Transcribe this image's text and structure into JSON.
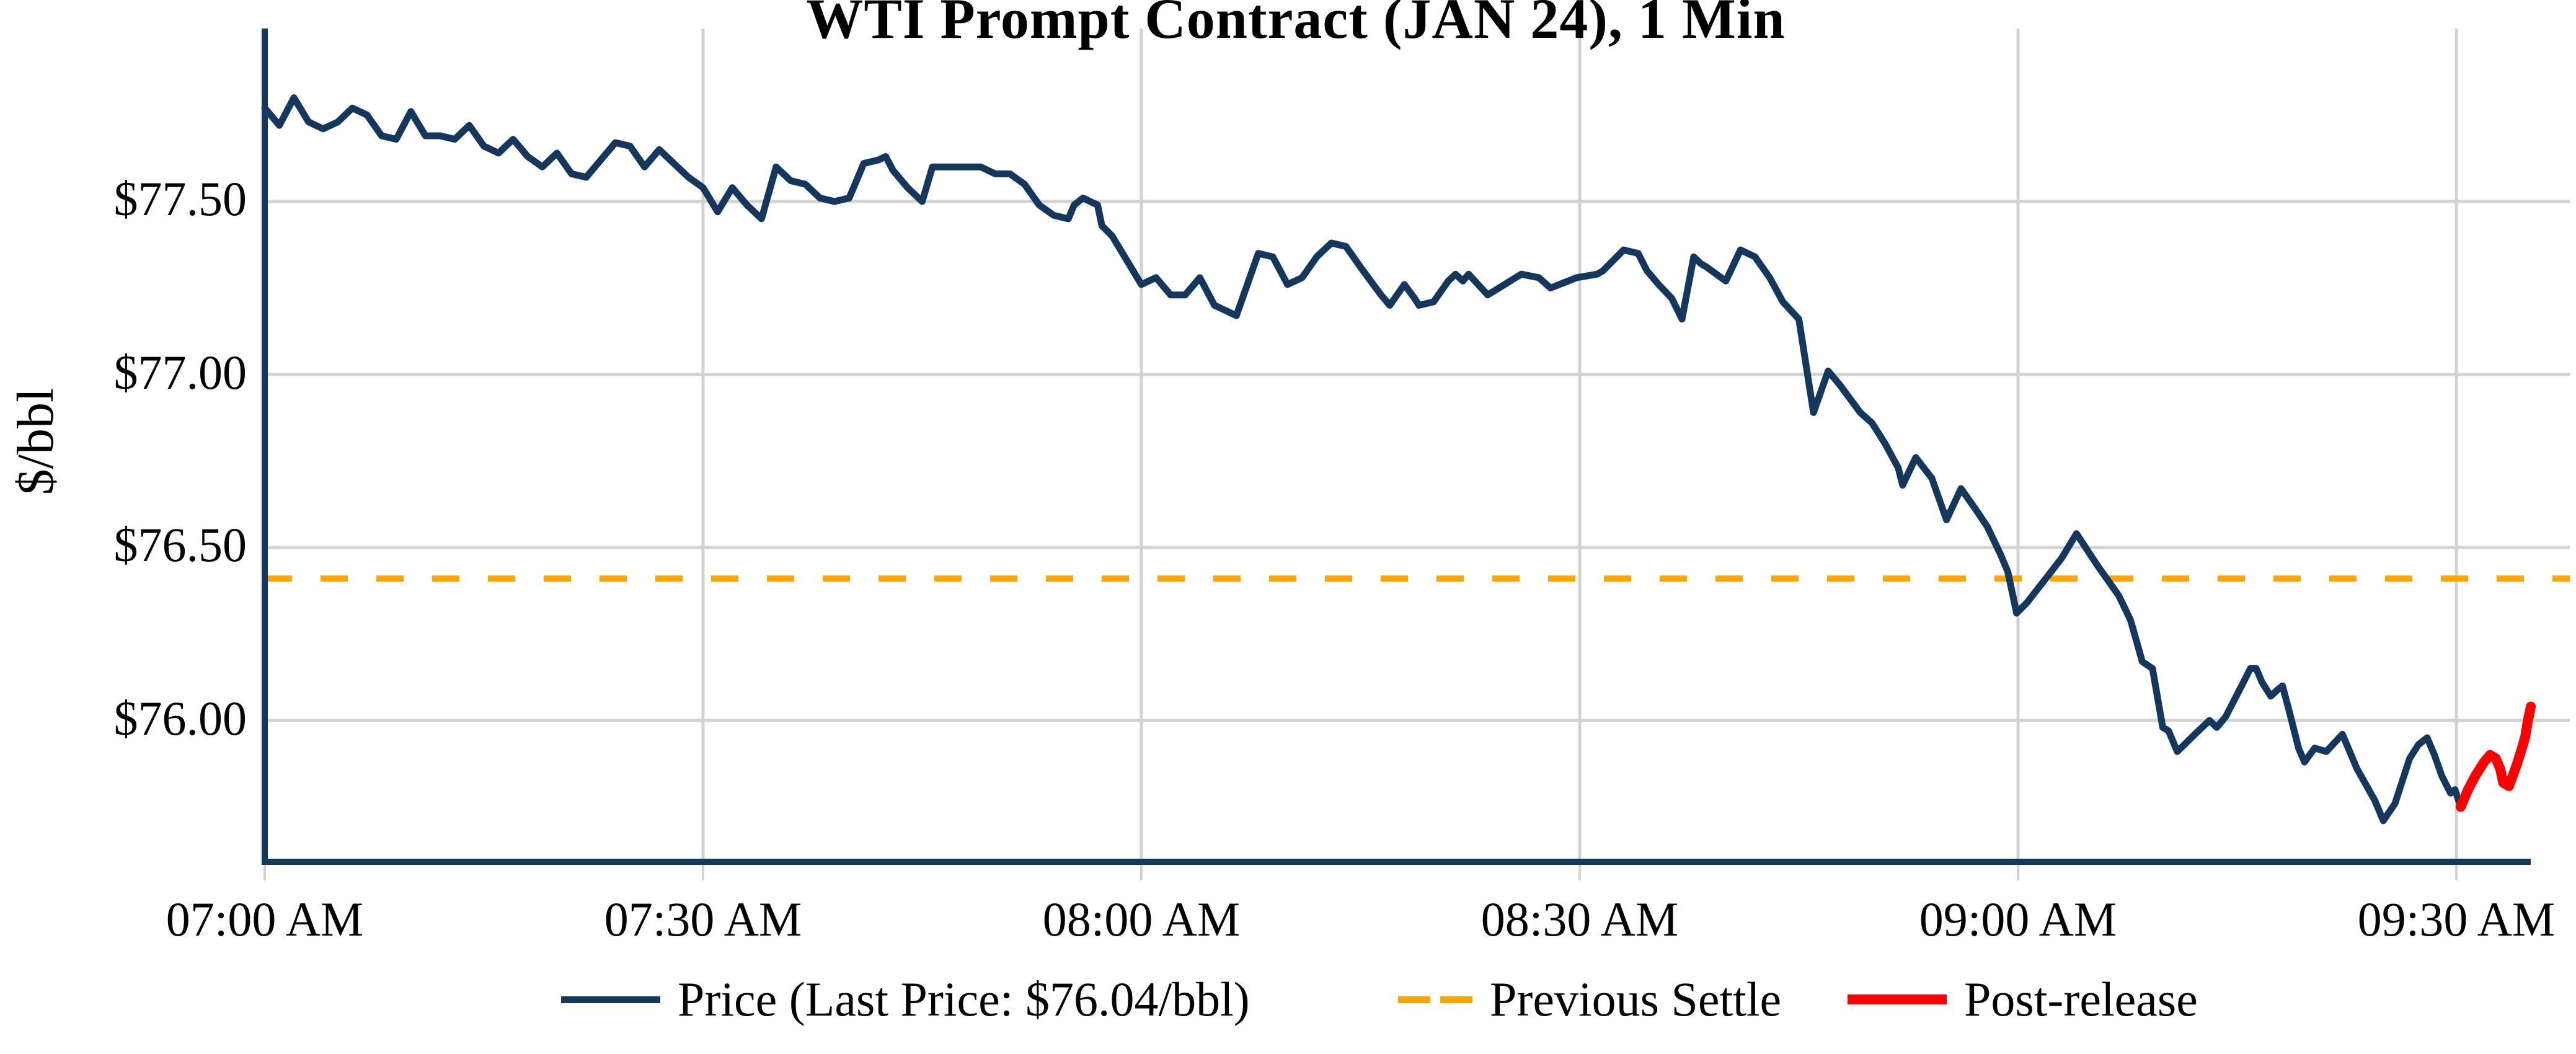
{
  "title": "WTI Prompt Contract (JAN 24), 1 Min",
  "y_axis": {
    "label": "$/bbl",
    "ticks": [
      "$77.50",
      "$77.00",
      "$76.50",
      "$76.00"
    ]
  },
  "x_axis": {
    "ticks": [
      "07:00 AM",
      "07:30 AM",
      "08:00 AM",
      "08:30 AM",
      "09:00 AM",
      "09:30 AM"
    ]
  },
  "legend": {
    "items": [
      {
        "label": "Price (Last Price: $76.04/bbl)",
        "color": "#14375e",
        "style": "solid"
      },
      {
        "label": "Previous Settle",
        "color": "#ffa500",
        "style": "dashed"
      },
      {
        "label": "Post-release",
        "color": "#ff0000",
        "style": "thick"
      }
    ]
  },
  "colors": {
    "price_line": "#14375e",
    "settle_line": "#ffa500",
    "post_release_line": "#ff0000",
    "grid": "#d2d2d2",
    "axis_spine": "#14375e"
  },
  "chart_data": {
    "type": "line",
    "title": "WTI Prompt Contract (JAN 24), 1 Min",
    "xlabel": "",
    "ylabel": "$/bbl",
    "x_unit": "minutes after 07:00 AM",
    "x_tick_minutes": [
      0,
      30,
      60,
      90,
      120,
      150
    ],
    "x_tick_labels": [
      "07:00 AM",
      "07:30 AM",
      "08:00 AM",
      "08:30 AM",
      "09:00 AM",
      "09:30 AM"
    ],
    "ytick_values": [
      77.5,
      77.0,
      76.5,
      76.0
    ],
    "ylim": [
      75.55,
      78.0
    ],
    "xlim_minutes": [
      0,
      155.1
    ],
    "grid": true,
    "legend_position": "bottom",
    "previous_settle": 76.41,
    "last_price": 76.04,
    "series": [
      {
        "name": "Price",
        "type": "line",
        "color": "#14375e",
        "width": 11,
        "points": [
          [
            0,
            77.77
          ],
          [
            1,
            77.72
          ],
          [
            2,
            77.8
          ],
          [
            3,
            77.73
          ],
          [
            4,
            77.71
          ],
          [
            5,
            77.73
          ],
          [
            6,
            77.77
          ],
          [
            7,
            77.75
          ],
          [
            8,
            77.69
          ],
          [
            9,
            77.68
          ],
          [
            10,
            77.76
          ],
          [
            11,
            77.69
          ],
          [
            12,
            77.69
          ],
          [
            13,
            77.68
          ],
          [
            14,
            77.72
          ],
          [
            15,
            77.66
          ],
          [
            16,
            77.64
          ],
          [
            17,
            77.68
          ],
          [
            18,
            77.63
          ],
          [
            19,
            77.6
          ],
          [
            20,
            77.64
          ],
          [
            21,
            77.58
          ],
          [
            22,
            77.57
          ],
          [
            23,
            77.62
          ],
          [
            24,
            77.67
          ],
          [
            25,
            77.66
          ],
          [
            26,
            77.6
          ],
          [
            27,
            77.65
          ],
          [
            28,
            77.61
          ],
          [
            29,
            77.57
          ],
          [
            30,
            77.54
          ],
          [
            31,
            77.47
          ],
          [
            32,
            77.54
          ],
          [
            33,
            77.49
          ],
          [
            34,
            77.45
          ],
          [
            35,
            77.6
          ],
          [
            36,
            77.56
          ],
          [
            37,
            77.55
          ],
          [
            38,
            77.51
          ],
          [
            39,
            77.5
          ],
          [
            40,
            77.51
          ],
          [
            41,
            77.61
          ],
          [
            42,
            77.62
          ],
          [
            42.5,
            77.63
          ],
          [
            43,
            77.59
          ],
          [
            44,
            77.54
          ],
          [
            45,
            77.5
          ],
          [
            45.7,
            77.6
          ],
          [
            47,
            77.6
          ],
          [
            48,
            77.6
          ],
          [
            49,
            77.6
          ],
          [
            50,
            77.58
          ],
          [
            51,
            77.58
          ],
          [
            52,
            77.55
          ],
          [
            53,
            77.49
          ],
          [
            54,
            77.46
          ],
          [
            55,
            77.45
          ],
          [
            55.4,
            77.49
          ],
          [
            56,
            77.51
          ],
          [
            57,
            77.49
          ],
          [
            57.3,
            77.43
          ],
          [
            58,
            77.4
          ],
          [
            59,
            77.33
          ],
          [
            60,
            77.26
          ],
          [
            61,
            77.28
          ],
          [
            62,
            77.23
          ],
          [
            63,
            77.23
          ],
          [
            64,
            77.28
          ],
          [
            65,
            77.2
          ],
          [
            66.5,
            77.17
          ],
          [
            68,
            77.35
          ],
          [
            69,
            77.34
          ],
          [
            70,
            77.26
          ],
          [
            71,
            77.28
          ],
          [
            72,
            77.34
          ],
          [
            73,
            77.38
          ],
          [
            74,
            77.37
          ],
          [
            75,
            77.31
          ],
          [
            76.4,
            77.23
          ],
          [
            77,
            77.2
          ],
          [
            78,
            77.26
          ],
          [
            78.7,
            77.22
          ],
          [
            79,
            77.2
          ],
          [
            80,
            77.21
          ],
          [
            81,
            77.27
          ],
          [
            81.5,
            77.29
          ],
          [
            82,
            77.27
          ],
          [
            82.4,
            77.29
          ],
          [
            83.7,
            77.23
          ],
          [
            86,
            77.29
          ],
          [
            87.2,
            77.28
          ],
          [
            88,
            77.25
          ],
          [
            89.8,
            77.28
          ],
          [
            91.2,
            77.29
          ],
          [
            91.6,
            77.3
          ],
          [
            93,
            77.36
          ],
          [
            94,
            77.35
          ],
          [
            94.6,
            77.3
          ],
          [
            95.4,
            77.26
          ],
          [
            96.3,
            77.22
          ],
          [
            97,
            77.16
          ],
          [
            97.8,
            77.34
          ],
          [
            98.3,
            77.32
          ],
          [
            98.7,
            77.31
          ],
          [
            100,
            77.27
          ],
          [
            101,
            77.36
          ],
          [
            102,
            77.34
          ],
          [
            103,
            77.28
          ],
          [
            103.9,
            77.21
          ],
          [
            105,
            77.16
          ],
          [
            106,
            76.89
          ],
          [
            107,
            77.01
          ],
          [
            107.8,
            76.97
          ],
          [
            109.2,
            76.89
          ],
          [
            110,
            76.86
          ],
          [
            110.9,
            76.8
          ],
          [
            111.8,
            76.73
          ],
          [
            112.1,
            76.68
          ],
          [
            113,
            76.76
          ],
          [
            114.1,
            76.7
          ],
          [
            115.1,
            76.58
          ],
          [
            116.1,
            76.67
          ],
          [
            117.1,
            76.61
          ],
          [
            117.9,
            76.56
          ],
          [
            118.8,
            76.48
          ],
          [
            119.3,
            76.43
          ],
          [
            119.9,
            76.31
          ],
          [
            120.6,
            76.34
          ],
          [
            121.9,
            76.41
          ],
          [
            123,
            76.47
          ],
          [
            124,
            76.54
          ],
          [
            125.4,
            76.45
          ],
          [
            126.9,
            76.36
          ],
          [
            127.7,
            76.29
          ],
          [
            128.5,
            76.17
          ],
          [
            129.2,
            76.15
          ],
          [
            129.9,
            75.98
          ],
          [
            130.3,
            75.97
          ],
          [
            130.9,
            75.91
          ],
          [
            132.1,
            75.96
          ],
          [
            133.1,
            76.0
          ],
          [
            133.6,
            75.98
          ],
          [
            134.2,
            76.01
          ],
          [
            135.3,
            76.1
          ],
          [
            135.9,
            76.15
          ],
          [
            136.3,
            76.15
          ],
          [
            136.7,
            76.11
          ],
          [
            137.3,
            76.07
          ],
          [
            137.8,
            76.09
          ],
          [
            138.1,
            76.1
          ],
          [
            138.6,
            76.02
          ],
          [
            139.2,
            75.92
          ],
          [
            139.6,
            75.88
          ],
          [
            140.3,
            75.92
          ],
          [
            141.1,
            75.91
          ],
          [
            142.2,
            75.96
          ],
          [
            143.2,
            75.86
          ],
          [
            144.4,
            75.77
          ],
          [
            145,
            75.71
          ],
          [
            145.8,
            75.76
          ],
          [
            146.8,
            75.89
          ],
          [
            147.4,
            75.93
          ],
          [
            148,
            75.95
          ],
          [
            148.5,
            75.9
          ],
          [
            149,
            75.84
          ],
          [
            149.6,
            75.79
          ],
          [
            149.9,
            75.8
          ],
          [
            150.3,
            75.75
          ]
        ]
      },
      {
        "name": "Post-release",
        "type": "line",
        "color": "#ff0000",
        "width": 16,
        "points": [
          [
            150.3,
            75.75
          ],
          [
            150.8,
            75.8
          ],
          [
            151.3,
            75.84
          ],
          [
            151.9,
            75.88
          ],
          [
            152.3,
            75.9
          ],
          [
            152.7,
            75.89
          ],
          [
            153.0,
            75.86
          ],
          [
            153.2,
            75.82
          ],
          [
            153.6,
            75.81
          ],
          [
            154.2,
            75.88
          ],
          [
            154.7,
            75.95
          ],
          [
            154.9,
            76.0
          ],
          [
            155.1,
            76.04
          ]
        ]
      },
      {
        "name": "Previous Settle",
        "type": "hline",
        "color": "#ffa500",
        "style": "dashed",
        "value": 76.41
      }
    ]
  }
}
